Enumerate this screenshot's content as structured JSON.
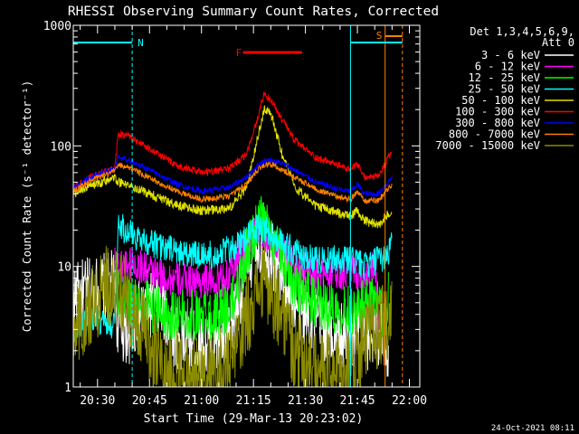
{
  "chart_data": {
    "type": "line",
    "title": "RHESSI Observing Summary Count Rates, Corrected",
    "xlabel": "Start Time (29-Mar-13 20:23:02)",
    "ylabel": "Corrected Count Rate (s⁻¹ detector⁻¹)",
    "y_scale": "log",
    "ylim": [
      1,
      1000
    ],
    "xlim_minutes_after_2023": [
      0,
      100
    ],
    "x_ticks": [
      {
        "label": "20:30",
        "t": 7
      },
      {
        "label": "20:45",
        "t": 22
      },
      {
        "label": "21:00",
        "t": 37
      },
      {
        "label": "21:15",
        "t": 52
      },
      {
        "label": "21:30",
        "t": 67
      },
      {
        "label": "21:45",
        "t": 82
      },
      {
        "label": "22:00",
        "t": 97
      }
    ],
    "y_ticks": [
      {
        "label": "1",
        "v": 1
      },
      {
        "label": "10",
        "v": 10
      },
      {
        "label": "100",
        "v": 100
      },
      {
        "label": "1000",
        "v": 1000
      }
    ],
    "legend_header": [
      "Det 1,3,4,5,6,9,",
      "Att 0"
    ],
    "legend_position": "right",
    "series": [
      {
        "name": "3 - 6 keV",
        "color": "#ffffff",
        "noise": 0.3,
        "points": [
          [
            0,
            5.5
          ],
          [
            12,
            7
          ],
          [
            13,
            3
          ],
          [
            16,
            3
          ],
          [
            22,
            5
          ],
          [
            27,
            4
          ],
          [
            30,
            2.5
          ],
          [
            37,
            2.2
          ],
          [
            45,
            2.5
          ],
          [
            49,
            8
          ],
          [
            52,
            14
          ],
          [
            55,
            14
          ],
          [
            58,
            12
          ],
          [
            61,
            8
          ],
          [
            64,
            5
          ],
          [
            70,
            3.5
          ],
          [
            76,
            2.5
          ],
          [
            80,
            2.5
          ],
          [
            82,
            3
          ],
          [
            84,
            2.5
          ],
          [
            87,
            3
          ],
          [
            90,
            3
          ],
          [
            91,
            1.5
          ]
        ]
      },
      {
        "name": "6 - 12 keV",
        "color": "#ff00ff",
        "noise": 0.15,
        "points": [
          [
            12,
            13
          ],
          [
            13,
            10
          ],
          [
            16,
            11
          ],
          [
            22,
            9
          ],
          [
            27,
            8
          ],
          [
            33,
            7.5
          ],
          [
            40,
            7.5
          ],
          [
            45,
            8
          ],
          [
            48,
            13
          ],
          [
            51,
            17
          ],
          [
            54,
            19
          ],
          [
            57,
            17
          ],
          [
            60,
            14
          ],
          [
            64,
            10
          ],
          [
            70,
            9
          ],
          [
            76,
            9
          ],
          [
            80,
            9
          ],
          [
            82,
            9
          ],
          [
            83,
            8
          ],
          [
            87,
            10
          ],
          [
            88,
            4
          ],
          [
            90,
            2
          ]
        ]
      },
      {
        "name": "12 - 25 keV",
        "color": "#00ff00",
        "noise": 0.22,
        "points": [
          [
            12,
            8
          ],
          [
            13,
            5.5
          ],
          [
            16,
            5.5
          ],
          [
            22,
            4.5
          ],
          [
            28,
            4
          ],
          [
            35,
            4
          ],
          [
            42,
            4
          ],
          [
            46,
            5
          ],
          [
            50,
            13
          ],
          [
            54,
            24
          ],
          [
            57,
            19
          ],
          [
            60,
            12
          ],
          [
            64,
            7
          ],
          [
            70,
            5
          ],
          [
            76,
            4.5
          ],
          [
            82,
            4.5
          ],
          [
            87,
            5
          ],
          [
            90,
            4
          ],
          [
            91,
            5.5
          ]
        ]
      },
      {
        "name": "25 - 50 keV",
        "color": "#00ffff",
        "noise": 0.12,
        "points": [
          [
            0,
            3
          ],
          [
            5,
            3.5
          ],
          [
            12,
            3.3
          ],
          [
            13,
            22
          ],
          [
            15,
            20
          ],
          [
            18,
            18
          ],
          [
            22,
            16
          ],
          [
            27,
            14
          ],
          [
            33,
            12.5
          ],
          [
            40,
            12.5
          ],
          [
            46,
            14
          ],
          [
            50,
            17
          ],
          [
            53,
            21
          ],
          [
            56,
            20
          ],
          [
            59,
            17
          ],
          [
            64,
            13
          ],
          [
            70,
            11.5
          ],
          [
            76,
            11.5
          ],
          [
            82,
            11
          ],
          [
            84,
            10
          ],
          [
            87,
            11
          ],
          [
            90,
            12
          ],
          [
            92,
            15
          ]
        ]
      },
      {
        "name": "50 - 100 keV",
        "color": "#e0e000",
        "noise": 0.04,
        "points": [
          [
            0,
            40
          ],
          [
            5,
            47
          ],
          [
            10,
            52
          ],
          [
            12,
            55
          ],
          [
            13,
            50
          ],
          [
            16,
            47
          ],
          [
            22,
            40
          ],
          [
            30,
            32
          ],
          [
            37,
            29
          ],
          [
            45,
            30
          ],
          [
            50,
            45
          ],
          [
            53,
            110
          ],
          [
            55,
            200
          ],
          [
            57,
            190
          ],
          [
            60,
            90
          ],
          [
            64,
            45
          ],
          [
            70,
            32
          ],
          [
            76,
            28
          ],
          [
            80,
            26
          ],
          [
            82,
            29
          ],
          [
            84,
            24
          ],
          [
            88,
            22
          ],
          [
            92,
            30
          ]
        ]
      },
      {
        "name": "100 - 300 keV",
        "color": "#ff0000",
        "noise": 0.03,
        "points": [
          [
            0,
            45
          ],
          [
            5,
            55
          ],
          [
            10,
            62
          ],
          [
            12,
            65
          ],
          [
            13,
            125
          ],
          [
            16,
            120
          ],
          [
            22,
            95
          ],
          [
            30,
            68
          ],
          [
            37,
            60
          ],
          [
            45,
            65
          ],
          [
            50,
            85
          ],
          [
            53,
            160
          ],
          [
            55,
            270
          ],
          [
            57,
            240
          ],
          [
            60,
            170
          ],
          [
            64,
            110
          ],
          [
            70,
            80
          ],
          [
            76,
            70
          ],
          [
            80,
            63
          ],
          [
            82,
            70
          ],
          [
            84,
            55
          ],
          [
            88,
            55
          ],
          [
            92,
            90
          ]
        ]
      },
      {
        "name": "300 - 800 keV",
        "color": "#0000ff",
        "noise": 0.025,
        "points": [
          [
            0,
            45
          ],
          [
            5,
            55
          ],
          [
            10,
            62
          ],
          [
            12,
            65
          ],
          [
            13,
            82
          ],
          [
            16,
            76
          ],
          [
            22,
            63
          ],
          [
            30,
            48
          ],
          [
            37,
            42
          ],
          [
            45,
            45
          ],
          [
            50,
            55
          ],
          [
            53,
            68
          ],
          [
            55,
            75
          ],
          [
            57,
            76
          ],
          [
            60,
            72
          ],
          [
            64,
            63
          ],
          [
            70,
            50
          ],
          [
            76,
            44
          ],
          [
            80,
            42
          ],
          [
            82,
            48
          ],
          [
            84,
            40
          ],
          [
            88,
            40
          ],
          [
            92,
            55
          ]
        ]
      },
      {
        "name": "800 - 7000 keV",
        "color": "#ff8000",
        "noise": 0.025,
        "points": [
          [
            0,
            42
          ],
          [
            5,
            52
          ],
          [
            10,
            58
          ],
          [
            12,
            62
          ],
          [
            13,
            70
          ],
          [
            16,
            66
          ],
          [
            22,
            54
          ],
          [
            30,
            42
          ],
          [
            37,
            36
          ],
          [
            45,
            38
          ],
          [
            50,
            48
          ],
          [
            53,
            62
          ],
          [
            55,
            70
          ],
          [
            57,
            70
          ],
          [
            60,
            64
          ],
          [
            64,
            55
          ],
          [
            70,
            44
          ],
          [
            76,
            38
          ],
          [
            80,
            36
          ],
          [
            82,
            42
          ],
          [
            84,
            35
          ],
          [
            88,
            35
          ],
          [
            92,
            48
          ]
        ]
      },
      {
        "name": "7000 - 15000 keV",
        "color": "#8b8b00",
        "noise": 0.35,
        "points": [
          [
            0,
            3.2
          ],
          [
            4,
            4
          ],
          [
            8,
            6
          ],
          [
            10,
            7
          ],
          [
            12,
            7
          ],
          [
            14,
            6
          ],
          [
            18,
            4
          ],
          [
            22,
            2.2
          ],
          [
            24,
            1.8
          ],
          [
            27,
            1.3
          ],
          [
            30,
            1.3
          ],
          [
            37,
            1.2
          ],
          [
            45,
            1.4
          ],
          [
            48,
            2.5
          ],
          [
            50,
            4
          ],
          [
            54,
            7
          ],
          [
            57,
            6
          ],
          [
            60,
            4.5
          ],
          [
            64,
            2
          ],
          [
            70,
            1.3
          ],
          [
            76,
            1.3
          ],
          [
            80,
            1.3
          ],
          [
            82,
            1.8
          ],
          [
            84,
            2.5
          ],
          [
            88,
            3
          ],
          [
            92,
            3.5
          ]
        ]
      }
    ],
    "annotations": [
      {
        "label": "N",
        "color": "#00ffff",
        "t_from": 0,
        "t_to": 17
      },
      {
        "label": "S",
        "color": "#ff8000",
        "t_from": 90,
        "t_to": 95
      },
      {
        "label": "F",
        "color": "#ff0000",
        "t_from": 49,
        "t_to": 66
      },
      {
        "label": "",
        "color": "#00ffff",
        "t_from": 80,
        "t_to": 95
      }
    ],
    "vertical_markers": [
      {
        "t": 0,
        "color": "#00ffff",
        "style": "solid"
      },
      {
        "t": 17,
        "color": "#00ffff",
        "style": "dashed"
      },
      {
        "t": 80,
        "color": "#00ffff",
        "style": "solid"
      },
      {
        "t": 90,
        "color": "#ff8000",
        "style": "solid"
      },
      {
        "t": 95,
        "color": "#ff8000",
        "style": "dashed"
      }
    ]
  },
  "footer": {
    "timestamp": "24-Oct-2021 08:11"
  }
}
